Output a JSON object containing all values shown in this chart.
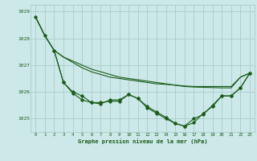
{
  "xlabel": "Graphe pression niveau de la mer (hPa)",
  "hours": [
    0,
    1,
    2,
    3,
    4,
    5,
    6,
    7,
    8,
    9,
    10,
    11,
    12,
    13,
    14,
    15,
    16,
    17,
    18,
    19,
    20,
    21,
    22,
    23
  ],
  "line_smooth": [
    1028.8,
    1028.1,
    1027.55,
    1027.3,
    1027.1,
    1026.9,
    1026.75,
    1026.65,
    1026.55,
    1026.5,
    1026.45,
    1026.4,
    1026.35,
    1026.3,
    1026.28,
    1026.25,
    1026.22,
    1026.2,
    1026.2,
    1026.2,
    1026.2,
    1026.2,
    1026.55,
    1026.7
  ],
  "line_straight": [
    1028.8,
    1028.1,
    1027.55,
    1027.3,
    1027.15,
    1027.0,
    1026.85,
    1026.75,
    1026.65,
    1026.55,
    1026.5,
    1026.45,
    1026.4,
    1026.35,
    1026.3,
    1026.25,
    1026.2,
    1026.18,
    1026.17,
    1026.16,
    1026.15,
    1026.15,
    1026.55,
    1026.7
  ],
  "line_zigzag1": [
    1028.8,
    1028.1,
    1027.55,
    1026.35,
    1026.0,
    1025.85,
    1025.6,
    1025.6,
    1025.65,
    1025.65,
    1025.9,
    1025.75,
    1025.45,
    1025.25,
    1025.05,
    1024.82,
    1024.72,
    1025.0,
    1025.15,
    1025.5,
    1025.85,
    1025.85,
    1026.15,
    1026.7
  ],
  "line_zigzag2": [
    null,
    null,
    1027.55,
    1026.35,
    1025.95,
    1025.7,
    1025.6,
    1025.55,
    1025.7,
    1025.7,
    1025.9,
    1025.75,
    1025.4,
    1025.2,
    1025.0,
    1024.82,
    1024.72,
    1024.85,
    1025.2,
    1025.45,
    1025.85,
    1025.85,
    1026.15,
    1026.7
  ],
  "line_color": "#1a5c1a",
  "bg_color": "#cce8e8",
  "grid_color": "#aacccc",
  "ylim": [
    1024.5,
    1029.25
  ],
  "yticks": [
    1025,
    1026,
    1027,
    1028,
    1029
  ],
  "marker": "D",
  "marker_size": 1.8,
  "line_width": 0.8
}
